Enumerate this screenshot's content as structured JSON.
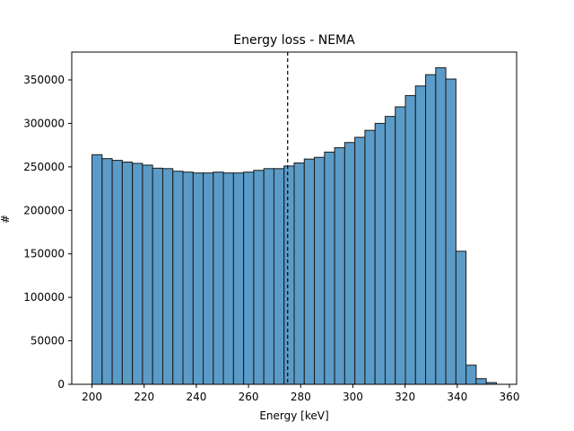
{
  "chart_data": {
    "type": "bar",
    "title": "Energy loss - NEMA",
    "xlabel": "Energy [keV]",
    "ylabel": "#",
    "xlim": [
      192.25,
      362.75
    ],
    "ylim": [
      0,
      382000
    ],
    "xticks": [
      200,
      220,
      240,
      260,
      280,
      300,
      320,
      340,
      360
    ],
    "yticks": [
      0,
      50000,
      100000,
      150000,
      200000,
      250000,
      300000,
      350000
    ],
    "bin_start": 200,
    "bin_width": 3.875,
    "bins": [
      {
        "x": 200.0,
        "value": 264000
      },
      {
        "x": 203.875,
        "value": 259500
      },
      {
        "x": 207.75,
        "value": 257500
      },
      {
        "x": 211.625,
        "value": 255500
      },
      {
        "x": 215.5,
        "value": 254000
      },
      {
        "x": 219.375,
        "value": 252000
      },
      {
        "x": 223.25,
        "value": 248500
      },
      {
        "x": 227.125,
        "value": 248000
      },
      {
        "x": 231.0,
        "value": 245000
      },
      {
        "x": 234.875,
        "value": 244000
      },
      {
        "x": 238.75,
        "value": 243000
      },
      {
        "x": 242.625,
        "value": 243000
      },
      {
        "x": 246.5,
        "value": 244000
      },
      {
        "x": 250.375,
        "value": 243000
      },
      {
        "x": 254.25,
        "value": 243000
      },
      {
        "x": 258.125,
        "value": 244000
      },
      {
        "x": 262.0,
        "value": 246000
      },
      {
        "x": 265.875,
        "value": 248000
      },
      {
        "x": 269.75,
        "value": 248000
      },
      {
        "x": 273.625,
        "value": 251000
      },
      {
        "x": 277.5,
        "value": 254500
      },
      {
        "x": 281.375,
        "value": 259000
      },
      {
        "x": 285.25,
        "value": 261000
      },
      {
        "x": 289.125,
        "value": 267000
      },
      {
        "x": 293.0,
        "value": 272000
      },
      {
        "x": 296.875,
        "value": 278000
      },
      {
        "x": 300.75,
        "value": 284000
      },
      {
        "x": 304.625,
        "value": 292000
      },
      {
        "x": 308.5,
        "value": 300000
      },
      {
        "x": 312.375,
        "value": 308000
      },
      {
        "x": 316.25,
        "value": 319000
      },
      {
        "x": 320.125,
        "value": 332000
      },
      {
        "x": 324.0,
        "value": 343000
      },
      {
        "x": 327.875,
        "value": 356000
      },
      {
        "x": 331.75,
        "value": 364000
      },
      {
        "x": 335.625,
        "value": 351000
      },
      {
        "x": 339.5,
        "value": 153000
      },
      {
        "x": 343.375,
        "value": 22000
      },
      {
        "x": 347.25,
        "value": 6500
      },
      {
        "x": 351.125,
        "value": 2000
      }
    ],
    "vline_x": 275,
    "bar_color": "#5b9bc8",
    "bar_edge_color": "#1a1a1a",
    "grid": false,
    "legend": "none"
  }
}
